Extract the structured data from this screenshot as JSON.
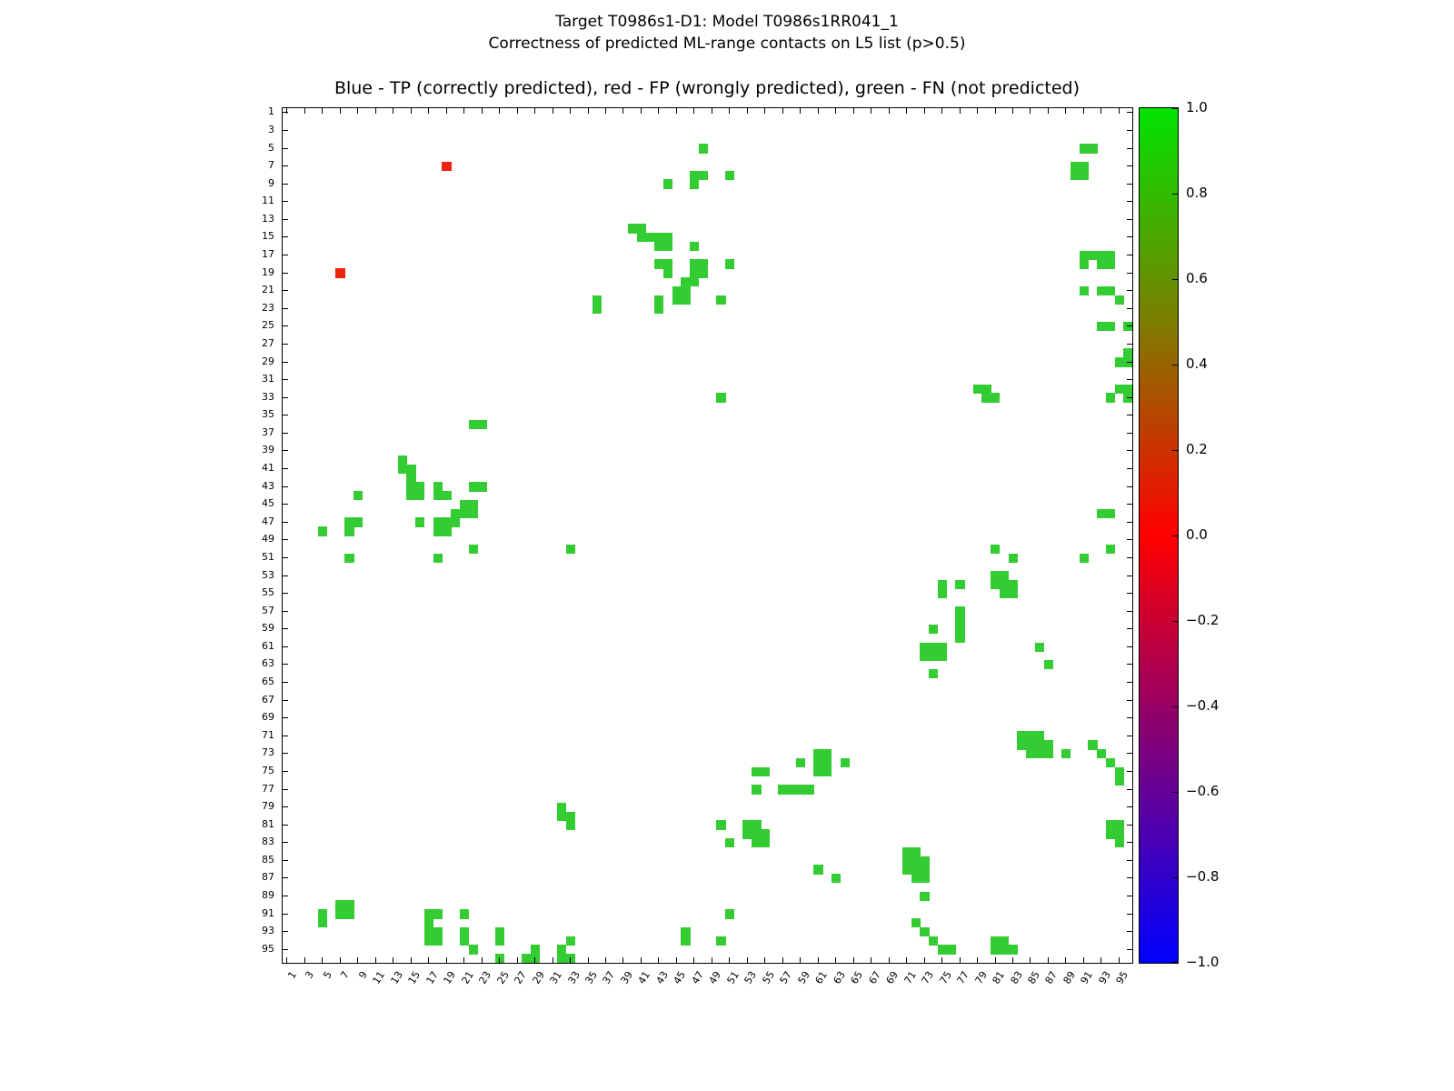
{
  "figure": {
    "suptitle_line1": "Target T0986s1-D1: Model T0986s1RR041_1",
    "suptitle_line2": "Correctness of predicted ML-range contacts on L5 list (p>0.5)",
    "axes_title": "Blue - TP (correctly predicted), red - FP (wrongly predicted), green - FN (not predicted)"
  },
  "chart_data": {
    "type": "heatmap",
    "title": "Blue - TP (correctly predicted), red - FP (wrongly predicted), green - FN (not predicted)",
    "suptitle_line1": "Target T0986s1-D1: Model T0986s1RR041_1",
    "suptitle_line2": "Correctness of predicted ML-range contacts on L5 list (p>0.5)",
    "n": 96,
    "axis_range": [
      1,
      96
    ],
    "symmetric": true,
    "legend": {
      "TP": "blue (correctly predicted)",
      "FP": "red (wrongly predicted)",
      "FN": "green (not predicted)"
    },
    "colors": {
      "fn": "#33cc33",
      "fp": "#ee2211",
      "tp": "#0000ff"
    },
    "x_tick_labels": [
      "1",
      "3",
      "5",
      "7",
      "9",
      "11",
      "13",
      "15",
      "17",
      "19",
      "21",
      "23",
      "25",
      "27",
      "29",
      "31",
      "33",
      "35",
      "37",
      "39",
      "41",
      "43",
      "45",
      "47",
      "49",
      "51",
      "53",
      "55",
      "57",
      "59",
      "61",
      "63",
      "65",
      "67",
      "69",
      "71",
      "73",
      "75",
      "77",
      "79",
      "81",
      "83",
      "85",
      "87",
      "89",
      "91",
      "93",
      "95"
    ],
    "y_tick_labels": [
      "1",
      "3",
      "5",
      "7",
      "9",
      "11",
      "13",
      "15",
      "17",
      "19",
      "21",
      "23",
      "25",
      "27",
      "29",
      "31",
      "33",
      "35",
      "37",
      "39",
      "41",
      "43",
      "45",
      "47",
      "49",
      "51",
      "53",
      "55",
      "57",
      "59",
      "61",
      "63",
      "65",
      "67",
      "69",
      "71",
      "73",
      "75",
      "77",
      "79",
      "81",
      "83",
      "85",
      "87",
      "89",
      "91",
      "93",
      "95"
    ],
    "fn_pairs": [
      [
        5,
        48
      ],
      [
        5,
        91
      ],
      [
        5,
        92
      ],
      [
        7,
        90
      ],
      [
        7,
        91
      ],
      [
        8,
        47
      ],
      [
        8,
        48
      ],
      [
        8,
        51
      ],
      [
        8,
        90
      ],
      [
        8,
        91
      ],
      [
        9,
        44
      ],
      [
        9,
        47
      ],
      [
        14,
        40
      ],
      [
        14,
        41
      ],
      [
        15,
        41
      ],
      [
        15,
        42
      ],
      [
        15,
        43
      ],
      [
        15,
        44
      ],
      [
        16,
        43
      ],
      [
        16,
        44
      ],
      [
        16,
        47
      ],
      [
        17,
        91
      ],
      [
        17,
        92
      ],
      [
        17,
        93
      ],
      [
        17,
        94
      ],
      [
        18,
        43
      ],
      [
        18,
        44
      ],
      [
        18,
        47
      ],
      [
        18,
        48
      ],
      [
        18,
        51
      ],
      [
        18,
        91
      ],
      [
        18,
        93
      ],
      [
        18,
        94
      ],
      [
        19,
        44
      ],
      [
        19,
        47
      ],
      [
        19,
        48
      ],
      [
        20,
        46
      ],
      [
        20,
        47
      ],
      [
        21,
        45
      ],
      [
        21,
        46
      ],
      [
        21,
        91
      ],
      [
        21,
        93
      ],
      [
        21,
        94
      ],
      [
        22,
        36
      ],
      [
        22,
        43
      ],
      [
        22,
        45
      ],
      [
        22,
        46
      ],
      [
        22,
        50
      ],
      [
        22,
        95
      ],
      [
        23,
        36
      ],
      [
        23,
        43
      ],
      [
        25,
        93
      ],
      [
        25,
        94
      ],
      [
        25,
        96
      ],
      [
        28,
        96
      ],
      [
        29,
        95
      ],
      [
        29,
        96
      ],
      [
        32,
        79
      ],
      [
        32,
        80
      ],
      [
        32,
        95
      ],
      [
        32,
        96
      ],
      [
        33,
        50
      ],
      [
        33,
        80
      ],
      [
        33,
        81
      ],
      [
        33,
        94
      ],
      [
        33,
        96
      ],
      [
        46,
        93
      ],
      [
        46,
        94
      ],
      [
        50,
        81
      ],
      [
        50,
        94
      ],
      [
        51,
        83
      ],
      [
        51,
        91
      ],
      [
        53,
        81
      ],
      [
        53,
        82
      ],
      [
        54,
        75
      ],
      [
        54,
        77
      ],
      [
        54,
        81
      ],
      [
        54,
        82
      ],
      [
        54,
        83
      ],
      [
        55,
        75
      ],
      [
        55,
        82
      ],
      [
        55,
        83
      ],
      [
        57,
        77
      ],
      [
        58,
        77
      ],
      [
        59,
        74
      ],
      [
        59,
        77
      ],
      [
        60,
        77
      ],
      [
        61,
        73
      ],
      [
        61,
        74
      ],
      [
        61,
        75
      ],
      [
        61,
        86
      ],
      [
        62,
        73
      ],
      [
        62,
        74
      ],
      [
        62,
        75
      ],
      [
        63,
        87
      ],
      [
        64,
        74
      ],
      [
        71,
        84
      ],
      [
        71,
        85
      ],
      [
        71,
        86
      ],
      [
        72,
        84
      ],
      [
        72,
        85
      ],
      [
        72,
        86
      ],
      [
        72,
        87
      ],
      [
        72,
        92
      ],
      [
        73,
        85
      ],
      [
        73,
        86
      ],
      [
        73,
        87
      ],
      [
        73,
        89
      ],
      [
        73,
        93
      ],
      [
        74,
        94
      ],
      [
        75,
        95
      ],
      [
        76,
        95
      ],
      [
        81,
        94
      ],
      [
        81,
        95
      ],
      [
        82,
        94
      ],
      [
        82,
        95
      ],
      [
        83,
        95
      ]
    ],
    "fp_pairs": [
      [
        7,
        19
      ]
    ],
    "colorbar": {
      "min": -1.0,
      "max": 1.0,
      "tick_labels": [
        "1.0",
        "0.8",
        "0.6",
        "0.4",
        "0.2",
        "0.0",
        "−0.2",
        "−0.4",
        "−0.6",
        "−0.8",
        "−1.0"
      ],
      "gradient_top_to_bottom": [
        "#00e400",
        "#7d7d00",
        "#ff0000",
        "#7d007d",
        "#0000ff"
      ]
    }
  }
}
